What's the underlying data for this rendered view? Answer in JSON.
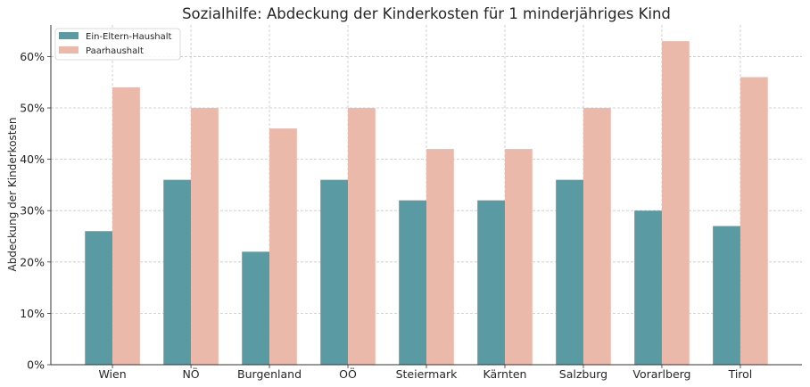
{
  "chart_data": {
    "type": "bar",
    "title": "Sozialhilfe: Abdeckung der Kinderkosten für 1 minderjähriges Kind",
    "xlabel": "",
    "ylabel": "Abdeckung der Kinderkosten",
    "categories": [
      "Wien",
      "NÖ",
      "Burgenland",
      "OÖ",
      "Steiermark",
      "Kärnten",
      "Salzburg",
      "Vorarlberg",
      "Tirol"
    ],
    "series": [
      {
        "name": "Ein-Eltern-Haushalt",
        "color": "#5a9aa3",
        "values": [
          26,
          36,
          22,
          36,
          32,
          32,
          36,
          30,
          27
        ]
      },
      {
        "name": "Paarhaushalt",
        "color": "#ebb9aa",
        "values": [
          54,
          50,
          46,
          50,
          42,
          42,
          50,
          63,
          56
        ]
      }
    ],
    "ylim": [
      0,
      66.15
    ],
    "yticks": [
      0,
      10,
      20,
      30,
      40,
      50,
      60
    ],
    "ytick_labels": [
      "0%",
      "10%",
      "20%",
      "30%",
      "40%",
      "50%",
      "60%"
    ],
    "grid": true,
    "legend_position": "top-left"
  }
}
